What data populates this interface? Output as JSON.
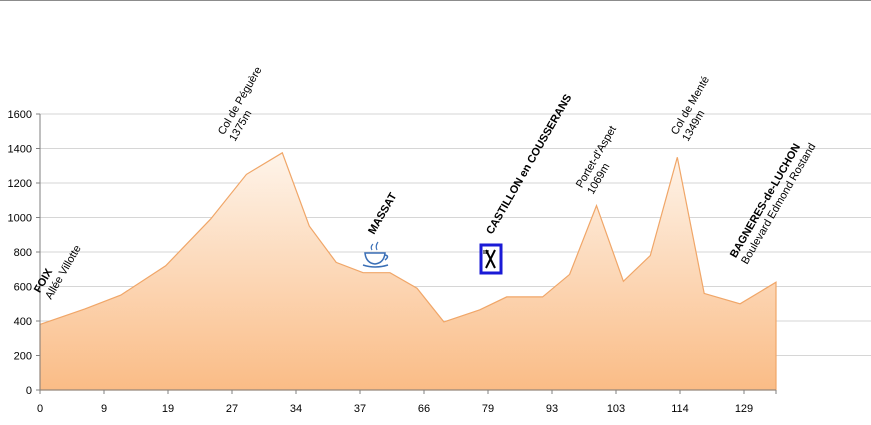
{
  "chart_data": {
    "type": "area",
    "x_tick_labels": [
      "0",
      "9",
      "19",
      "27",
      "34",
      "37",
      "66",
      "79",
      "93",
      "103",
      "114",
      "129"
    ],
    "y_ticks": [
      0,
      200,
      400,
      600,
      800,
      1000,
      1200,
      1400,
      1600
    ],
    "ylim": [
      0,
      1600
    ],
    "grid": true,
    "profile": [
      {
        "x": 0,
        "y": 380
      },
      {
        "x": 5,
        "y": 470
      },
      {
        "x": 9,
        "y": 550
      },
      {
        "x": 14,
        "y": 720
      },
      {
        "x": 19,
        "y": 990
      },
      {
        "x": 23,
        "y": 1250
      },
      {
        "x": 27,
        "y": 1375
      },
      {
        "x": 30,
        "y": 950
      },
      {
        "x": 33,
        "y": 740
      },
      {
        "x": 36,
        "y": 680
      },
      {
        "x": 39,
        "y": 680
      },
      {
        "x": 42,
        "y": 590
      },
      {
        "x": 45,
        "y": 395
      },
      {
        "x": 49,
        "y": 465
      },
      {
        "x": 52,
        "y": 540
      },
      {
        "x": 56,
        "y": 540
      },
      {
        "x": 59,
        "y": 670
      },
      {
        "x": 62,
        "y": 1069
      },
      {
        "x": 65,
        "y": 630
      },
      {
        "x": 68,
        "y": 780
      },
      {
        "x": 71,
        "y": 1349
      },
      {
        "x": 74,
        "y": 560
      },
      {
        "x": 78,
        "y": 500
      },
      {
        "x": 82,
        "y": 625
      }
    ],
    "colors": {
      "fill_top": "#fef4ea",
      "fill_bottom": "#fabc86",
      "stroke": "#f0a668",
      "grid": "#d6d6d6"
    },
    "annotations": [
      {
        "lines": [
          {
            "text": "FOIX",
            "bold": true
          },
          {
            "text": "Allée Villotte",
            "bold": false
          }
        ]
      },
      {
        "lines": [
          {
            "text": "Col de Péguère",
            "bold": false
          },
          {
            "text": "1375m",
            "bold": false
          }
        ]
      },
      {
        "lines": [
          {
            "text": "MASSAT",
            "bold": true
          }
        ]
      },
      {
        "lines": [
          {
            "text": "CASTILLON en COUSSERANS",
            "bold": true
          }
        ]
      },
      {
        "lines": [
          {
            "text": "Portet-d'Aspet",
            "bold": false
          },
          {
            "text": "1069m",
            "bold": false
          }
        ]
      },
      {
        "lines": [
          {
            "text": "Col de Menté",
            "bold": false
          },
          {
            "text": "1349m",
            "bold": false
          }
        ]
      },
      {
        "lines": [
          {
            "text": "BAGNERES-de-LUCHON",
            "bold": true
          },
          {
            "text": "Boulevard Edmond  Rostand",
            "bold": false
          }
        ]
      }
    ],
    "icons": [
      "coffee-cup-icon",
      "fork-knife-icon"
    ]
  }
}
